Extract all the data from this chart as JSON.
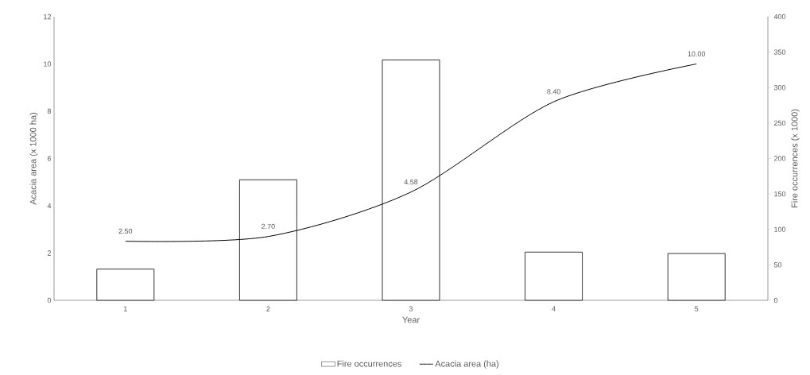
{
  "chart_data": {
    "type": "bar",
    "xlabel": "Year",
    "ylabel": "Acacia area (x 1000 ha)",
    "y2label": "Fire occurrences (x 1000)",
    "categories": [
      "1",
      "2",
      "3",
      "4",
      "5"
    ],
    "series": [
      {
        "name": "Fire occurrences",
        "axis": "y2",
        "color": "#000000",
        "values": [
          44,
          170,
          339,
          68,
          66
        ]
      },
      {
        "name": "Acacia area (ha)",
        "type": "line",
        "color": "#000000",
        "values": [
          2.5,
          2.7,
          4.58,
          8.4,
          10
        ],
        "value_labels": [
          "2.50",
          "2.70",
          "4.58",
          "8.40",
          "10.00"
        ]
      }
    ],
    "ylim": [
      0,
      12
    ],
    "yticks": [
      0,
      2,
      4,
      6,
      8,
      10,
      12
    ],
    "y2lim": [
      0,
      400
    ],
    "y2ticks": [
      0,
      50,
      100,
      150,
      200,
      250,
      300,
      350,
      400
    ],
    "legend": "bottom",
    "marker": "none",
    "line_style": "solid"
  }
}
